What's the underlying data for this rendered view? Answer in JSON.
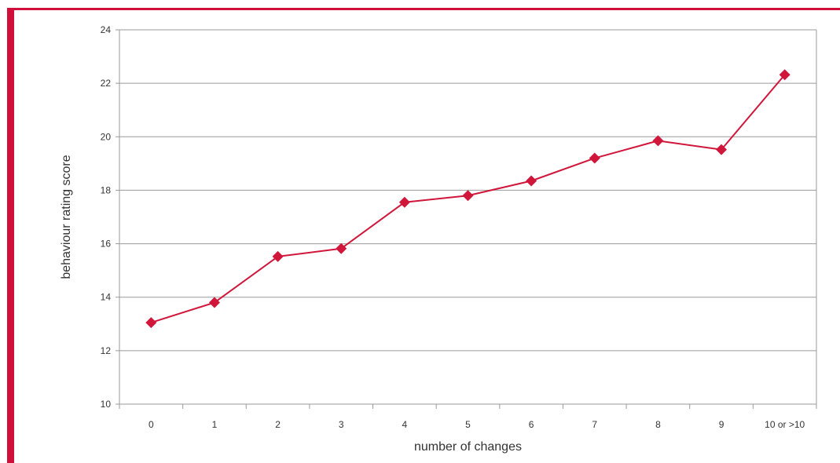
{
  "colors": {
    "accent": "#d0103a",
    "series": "#d0163a",
    "grid": "#9a9a9a"
  },
  "chart_data": {
    "type": "line",
    "title": "",
    "xlabel": "number of changes",
    "ylabel": "behaviour rating score",
    "categories": [
      "0",
      "1",
      "2",
      "3",
      "4",
      "5",
      "6",
      "7",
      "8",
      "9",
      "10 or >10"
    ],
    "series": [
      {
        "values": [
          13.05,
          13.8,
          15.52,
          15.82,
          17.55,
          17.8,
          18.35,
          19.2,
          19.85,
          19.52,
          22.32
        ]
      }
    ],
    "ylim": [
      10,
      24
    ],
    "yticks": [
      "10",
      "12",
      "14",
      "16",
      "18",
      "20",
      "22",
      "24"
    ],
    "grid": true,
    "legend": "none",
    "marker": "diamond"
  }
}
